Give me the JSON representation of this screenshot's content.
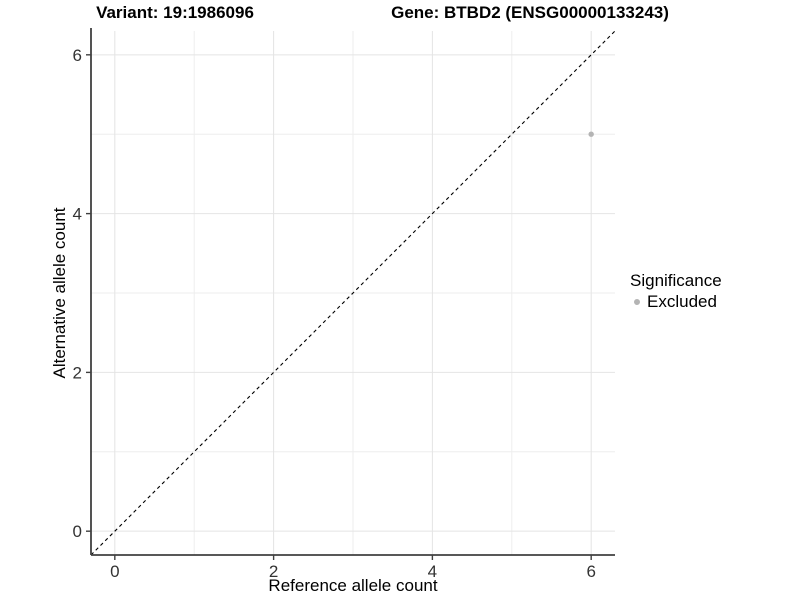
{
  "titles": {
    "left": "Variant: 19:1986096",
    "right": "Gene: BTBD2 (ENSG00000133243)"
  },
  "chart_data": {
    "type": "scatter",
    "title_left": "Variant: 19:1986096",
    "title_right": "Gene: BTBD2 (ENSG00000133243)",
    "xlabel": "Reference allele count",
    "ylabel": "Alternative allele count",
    "xlim": [
      -0.3,
      6.3
    ],
    "ylim": [
      -0.3,
      6.3
    ],
    "xticks": [
      0,
      2,
      4,
      6
    ],
    "yticks": [
      0,
      2,
      4,
      6
    ],
    "x_minor": [
      1,
      3,
      5
    ],
    "y_minor": [
      1,
      3,
      5
    ],
    "grid": true,
    "points": [
      {
        "x": 6,
        "y": 5,
        "series": "Excluded"
      }
    ],
    "reference_line": {
      "slope": 1,
      "intercept": 0,
      "style": "dashed"
    },
    "legend": {
      "position": "right",
      "title": "Significance",
      "entries": [
        {
          "label": "Excluded",
          "color": "#b4b4b4"
        }
      ]
    }
  },
  "colors": {
    "point": "#b4b4b4",
    "grid_major": "#e4e4e4",
    "grid_minor": "#eeeeee",
    "axis_line": "#404040",
    "tick_label": "#333333",
    "text": "#000000",
    "reference_line": "#000000",
    "background": "#ffffff"
  }
}
